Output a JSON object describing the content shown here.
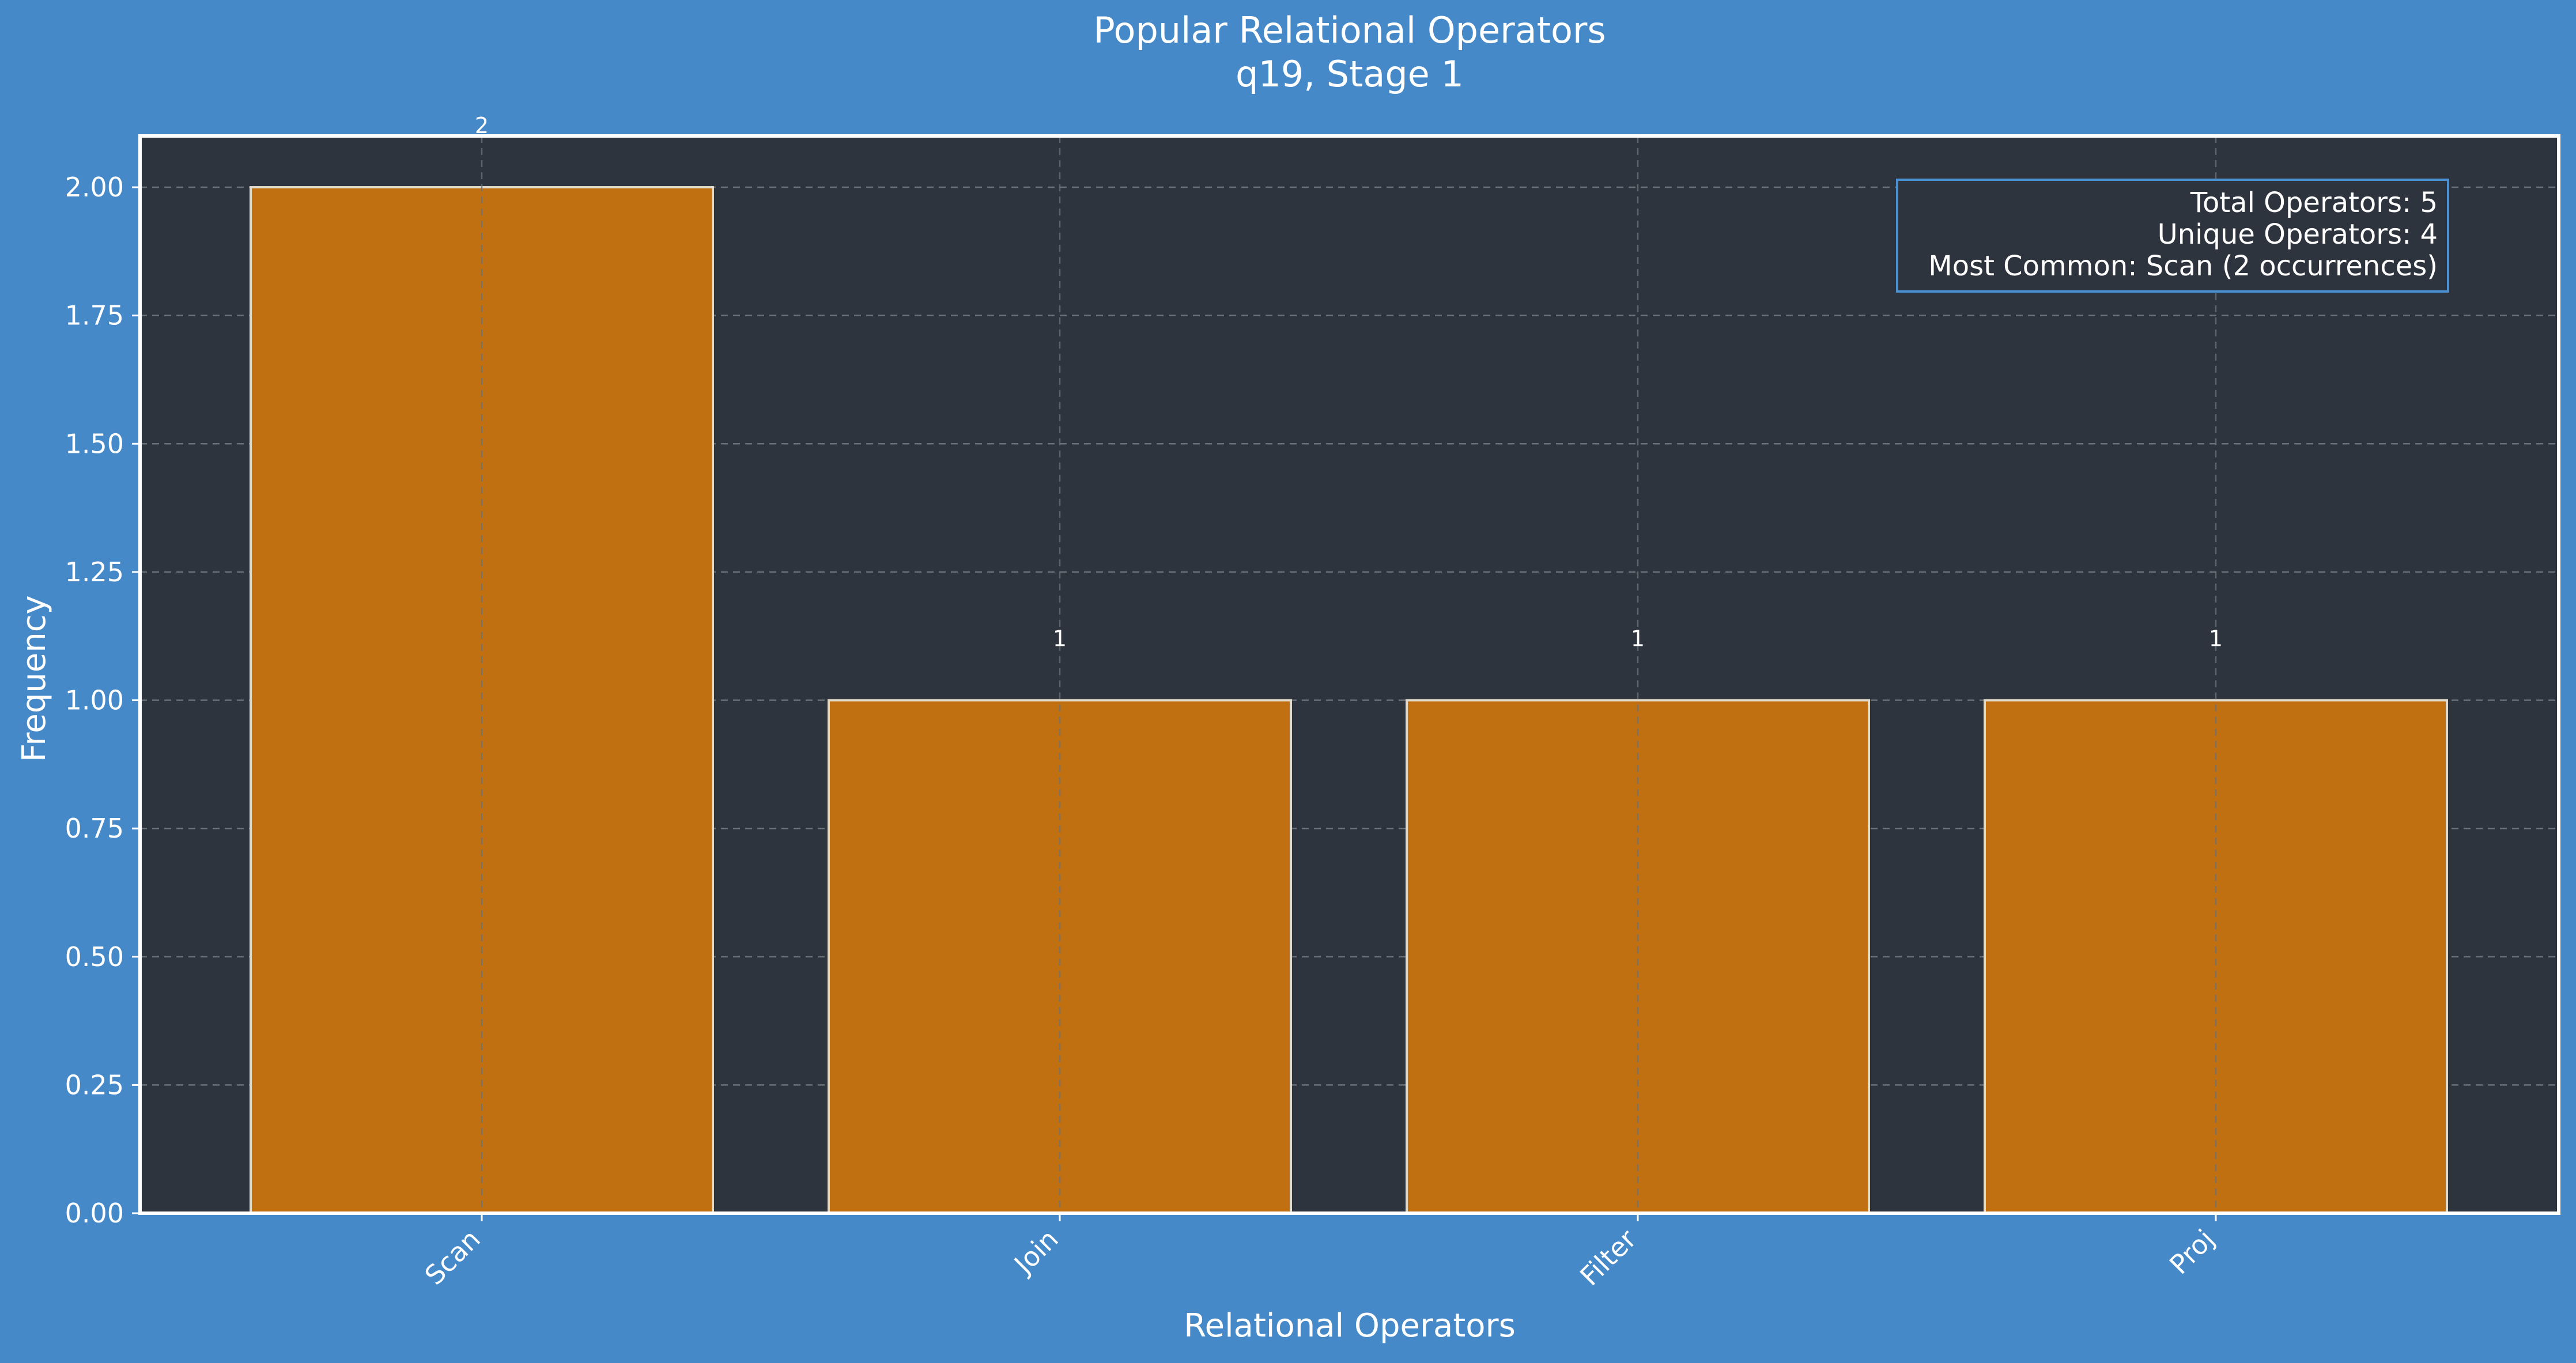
{
  "chart_data": {
    "type": "bar",
    "title": "Popular Relational Operators",
    "subtitle": "q19, Stage 1",
    "xlabel": "Relational Operators",
    "ylabel": "Frequency",
    "categories": [
      "Scan",
      "Join",
      "Filter",
      "Proj"
    ],
    "values": [
      2,
      1,
      1,
      1
    ],
    "value_labels": [
      "2",
      "1",
      "1",
      "1"
    ],
    "ylim": [
      0,
      2.1
    ],
    "yticks": [
      0.0,
      0.25,
      0.5,
      0.75,
      1.0,
      1.25,
      1.5,
      1.75,
      2.0
    ],
    "ytick_labels": [
      "0.00",
      "0.25",
      "0.50",
      "0.75",
      "1.00",
      "1.25",
      "1.50",
      "1.75",
      "2.00"
    ],
    "grid": true,
    "stats_box": {
      "lines": [
        "Total Operators: 5",
        "Unique Operators: 4",
        "Most Common: Scan (2 occurrences)"
      ],
      "placement": "top-right"
    },
    "colors": {
      "figure_background": "#4589c9",
      "plot_background": "#2e343d",
      "bar_fill": "#c07010",
      "bar_edge": "#e0d8c8",
      "text": "#ffffff",
      "grid": "#6a7078",
      "stats_border": "#4a8fd0"
    }
  }
}
